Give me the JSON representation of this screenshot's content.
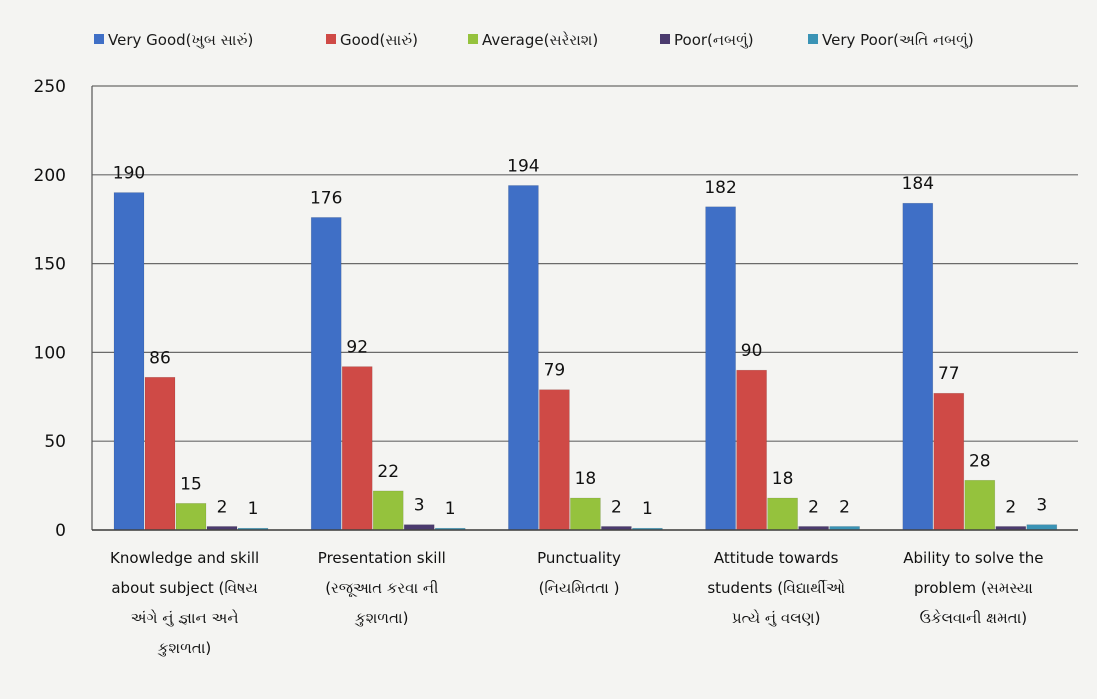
{
  "chart_data": {
    "type": "bar",
    "title": "",
    "xlabel": "",
    "ylabel": "",
    "ylim": [
      0,
      250
    ],
    "yticks": [
      0,
      50,
      100,
      150,
      200,
      250
    ],
    "grid": true,
    "legend_position": "top",
    "categories": [
      [
        "Knowledge and skill",
        "about subject (વિષય",
        "અંગે નું જ્ઞાન અને",
        "કુશળતા)"
      ],
      [
        "Presentation skill",
        "(રજૂઆત કરવા ની",
        "કુશળતા)"
      ],
      [
        "Punctuality",
        "(નિયમિતતા )"
      ],
      [
        "Attitude towards",
        "students (વિદ્યાર્થીઓ",
        "પ્રત્યે નું વલણ)"
      ],
      [
        "Ability to solve the",
        "problem (સમસ્યા",
        "ઉકેલવાની ક્ષમતા)"
      ]
    ],
    "series": [
      {
        "name": "Very Good(ખુબ સારું)",
        "color": "#3f6fc6",
        "values": [
          190,
          176,
          194,
          182,
          184
        ]
      },
      {
        "name": "Good(સારું)",
        "color": "#cf4a46",
        "values": [
          86,
          92,
          79,
          90,
          77
        ]
      },
      {
        "name": "Average(સરેરાશ)",
        "color": "#95c23d",
        "values": [
          15,
          22,
          18,
          18,
          28
        ]
      },
      {
        "name": "Poor(નબળું)",
        "color": "#4b3b6e",
        "values": [
          2,
          3,
          2,
          2,
          2
        ]
      },
      {
        "name": "Very Poor(અતિ નબળું)",
        "color": "#3a93b5",
        "values": [
          1,
          1,
          1,
          2,
          3
        ]
      }
    ]
  }
}
